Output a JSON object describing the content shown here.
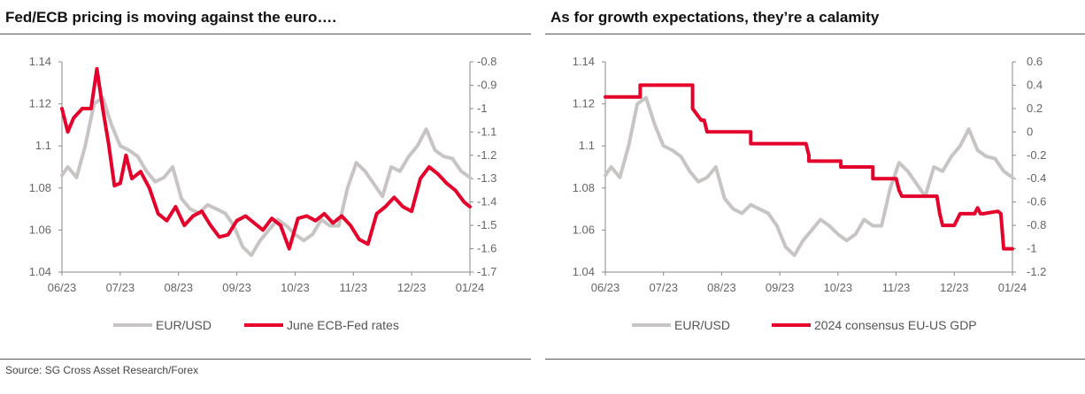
{
  "source": "Source: SG Cross Asset Research/Forex",
  "colors": {
    "eurusd": "#c8c4c4",
    "red": "#e4002b",
    "axis": "#888888"
  },
  "chart_data": [
    {
      "type": "line",
      "title": "Fed/ECB pricing is moving against the euro….",
      "x_ticks": [
        "06/23",
        "07/23",
        "08/23",
        "09/23",
        "10/23",
        "11/23",
        "12/23",
        "01/24"
      ],
      "left_axis": {
        "ylim": [
          1.04,
          1.14
        ],
        "ticks": [
          "1.04",
          "1.06",
          "1.08",
          "1.1",
          "1.12",
          "1.14"
        ]
      },
      "right_axis": {
        "ylim": [
          -1.7,
          -0.8
        ],
        "ticks": [
          "-1.7",
          "-1.6",
          "-1.5",
          "-1.4",
          "-1.3",
          "-1.2",
          "-1.1",
          "-1",
          "-0.9",
          "-0.8"
        ]
      },
      "legend": [
        "EUR/USD",
        "June ECB-Fed rates"
      ],
      "series": [
        {
          "name": "EUR/USD",
          "axis": "left",
          "x": [
            0,
            0.1,
            0.25,
            0.4,
            0.55,
            0.7,
            0.85,
            1.0,
            1.15,
            1.3,
            1.45,
            1.6,
            1.75,
            1.9,
            2.05,
            2.2,
            2.35,
            2.5,
            2.65,
            2.8,
            2.95,
            3.1,
            3.25,
            3.4,
            3.55,
            3.7,
            3.85,
            4.0,
            4.15,
            4.3,
            4.45,
            4.6,
            4.75,
            4.9,
            5.05,
            5.2,
            5.35,
            5.5,
            5.65,
            5.8,
            5.95,
            6.1,
            6.25,
            6.4,
            6.55,
            6.7,
            6.85,
            7.0
          ],
          "y": [
            1.086,
            1.09,
            1.085,
            1.1,
            1.12,
            1.123,
            1.11,
            1.1,
            1.098,
            1.095,
            1.088,
            1.083,
            1.085,
            1.09,
            1.075,
            1.07,
            1.068,
            1.072,
            1.07,
            1.068,
            1.062,
            1.052,
            1.048,
            1.055,
            1.06,
            1.065,
            1.062,
            1.058,
            1.055,
            1.058,
            1.065,
            1.062,
            1.062,
            1.08,
            1.092,
            1.088,
            1.082,
            1.076,
            1.09,
            1.088,
            1.095,
            1.1,
            1.108,
            1.098,
            1.095,
            1.094,
            1.088,
            1.085
          ]
        },
        {
          "name": "June ECB-Fed rates",
          "axis": "right",
          "x": [
            0,
            0.1,
            0.2,
            0.35,
            0.5,
            0.6,
            0.7,
            0.8,
            0.9,
            1.0,
            1.1,
            1.2,
            1.35,
            1.5,
            1.65,
            1.8,
            1.95,
            2.1,
            2.25,
            2.4,
            2.55,
            2.7,
            2.85,
            3.0,
            3.15,
            3.3,
            3.45,
            3.6,
            3.75,
            3.9,
            4.05,
            4.2,
            4.35,
            4.5,
            4.65,
            4.8,
            4.95,
            5.1,
            5.25,
            5.4,
            5.55,
            5.7,
            5.85,
            6.0,
            6.15,
            6.3,
            6.45,
            6.6,
            6.75,
            6.9,
            7.0
          ],
          "y": [
            -1.0,
            -1.1,
            -1.04,
            -1.0,
            -1.0,
            -0.83,
            -1.0,
            -1.15,
            -1.33,
            -1.32,
            -1.2,
            -1.3,
            -1.27,
            -1.34,
            -1.45,
            -1.48,
            -1.42,
            -1.5,
            -1.46,
            -1.44,
            -1.5,
            -1.55,
            -1.54,
            -1.48,
            -1.46,
            -1.49,
            -1.52,
            -1.47,
            -1.5,
            -1.6,
            -1.47,
            -1.46,
            -1.48,
            -1.45,
            -1.49,
            -1.46,
            -1.5,
            -1.56,
            -1.58,
            -1.45,
            -1.42,
            -1.38,
            -1.42,
            -1.44,
            -1.3,
            -1.25,
            -1.28,
            -1.32,
            -1.35,
            -1.4,
            -1.42
          ]
        }
      ]
    },
    {
      "type": "line",
      "title": "As for growth expectations, they’re a calamity",
      "x_ticks": [
        "06/23",
        "07/23",
        "08/23",
        "09/23",
        "10/23",
        "11/23",
        "12/23",
        "01/24"
      ],
      "left_axis": {
        "ylim": [
          1.04,
          1.14
        ],
        "ticks": [
          "1.04",
          "1.06",
          "1.08",
          "1.1",
          "1.12",
          "1.14"
        ]
      },
      "right_axis": {
        "ylim": [
          -1.2,
          0.6
        ],
        "ticks": [
          "-1.2",
          "-1",
          "-0.8",
          "-0.6",
          "-0.4",
          "-0.2",
          "0",
          "0.2",
          "0.4",
          "0.6"
        ]
      },
      "legend": [
        "EUR/USD",
        "2024 consensus EU-US GDP"
      ],
      "series": [
        {
          "name": "EUR/USD",
          "axis": "left",
          "x": [
            0,
            0.1,
            0.25,
            0.4,
            0.55,
            0.7,
            0.85,
            1.0,
            1.15,
            1.3,
            1.45,
            1.6,
            1.75,
            1.9,
            2.05,
            2.2,
            2.35,
            2.5,
            2.65,
            2.8,
            2.95,
            3.1,
            3.25,
            3.4,
            3.55,
            3.7,
            3.85,
            4.0,
            4.15,
            4.3,
            4.45,
            4.6,
            4.75,
            4.9,
            5.05,
            5.2,
            5.35,
            5.5,
            5.65,
            5.8,
            5.95,
            6.1,
            6.25,
            6.4,
            6.55,
            6.7,
            6.85,
            7.0
          ],
          "y": [
            1.086,
            1.09,
            1.085,
            1.1,
            1.12,
            1.123,
            1.11,
            1.1,
            1.098,
            1.095,
            1.088,
            1.083,
            1.085,
            1.09,
            1.075,
            1.07,
            1.068,
            1.072,
            1.07,
            1.068,
            1.062,
            1.052,
            1.048,
            1.055,
            1.06,
            1.065,
            1.062,
            1.058,
            1.055,
            1.058,
            1.065,
            1.062,
            1.062,
            1.08,
            1.092,
            1.088,
            1.082,
            1.076,
            1.09,
            1.088,
            1.095,
            1.1,
            1.108,
            1.098,
            1.095,
            1.094,
            1.088,
            1.085
          ]
        },
        {
          "name": "2024 consensus EU-US GDP",
          "axis": "right",
          "x": [
            0,
            0.6,
            0.6,
            1.5,
            1.5,
            1.65,
            1.7,
            1.75,
            1.9,
            1.95,
            2.5,
            2.5,
            3.45,
            3.5,
            3.5,
            4.05,
            4.05,
            4.6,
            4.6,
            5.0,
            5.05,
            5.1,
            5.7,
            5.75,
            5.8,
            6.0,
            6.1,
            6.35,
            6.4,
            6.45,
            6.5,
            6.75,
            6.8,
            6.85,
            7.0
          ],
          "y": [
            0.3,
            0.3,
            0.4,
            0.4,
            0.2,
            0.1,
            0.1,
            0.0,
            0.0,
            0.0,
            0.0,
            -0.1,
            -0.1,
            -0.2,
            -0.25,
            -0.25,
            -0.3,
            -0.3,
            -0.4,
            -0.4,
            -0.5,
            -0.55,
            -0.55,
            -0.7,
            -0.8,
            -0.8,
            -0.7,
            -0.7,
            -0.65,
            -0.7,
            -0.7,
            -0.68,
            -0.7,
            -1.0,
            -1.0
          ]
        }
      ]
    }
  ]
}
